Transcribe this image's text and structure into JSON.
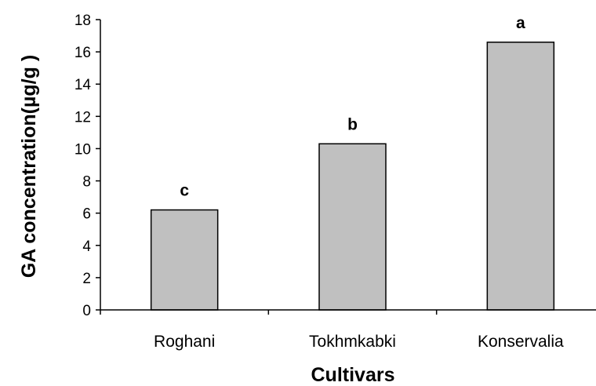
{
  "chart_data": {
    "type": "bar",
    "title": "",
    "xlabel": "Cultivars",
    "ylabel": "GA concentration(µg/g )",
    "categories": [
      "Roghani",
      "Tokhmkabki",
      "Konservalia"
    ],
    "values": [
      6.2,
      10.3,
      16.6
    ],
    "data_labels": [
      "c",
      "b",
      "a"
    ],
    "ylim": [
      0,
      18
    ],
    "yticks": [
      0,
      2,
      4,
      6,
      8,
      10,
      12,
      14,
      16,
      18
    ],
    "grid": false,
    "legend": "none",
    "bar_color": "#c0c0c0",
    "bar_edge_color": "#000000"
  }
}
